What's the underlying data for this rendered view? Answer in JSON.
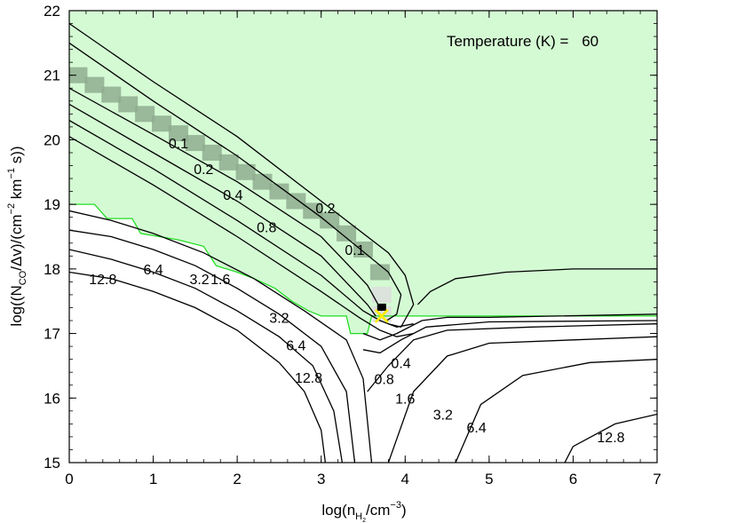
{
  "chart_data": {
    "type": "contour",
    "annotation": {
      "label": "Temperature (K) =",
      "value": "60"
    },
    "xlim": [
      0,
      7
    ],
    "ylim": [
      15,
      22
    ],
    "xticks": [
      "0",
      "1",
      "2",
      "3",
      "4",
      "5",
      "6",
      "7"
    ],
    "yticks": [
      "15",
      "16",
      "17",
      "18",
      "19",
      "20",
      "21",
      "22"
    ],
    "colors": {
      "region_fill": "#d4fad4",
      "region_edge": "#22dd22",
      "contour": "#000000",
      "best_fit_marker": "#ffee00",
      "probability_dark": "#8fab8f",
      "probability_light": "#dddddd"
    },
    "best_fit": {
      "x": 3.72,
      "y": 17.27
    },
    "probability_band": [
      [
        0.1,
        21.0
      ],
      [
        0.3,
        20.85
      ],
      [
        0.5,
        20.7
      ],
      [
        0.7,
        20.55
      ],
      [
        0.9,
        20.4
      ],
      [
        1.1,
        20.25
      ],
      [
        1.3,
        20.1
      ],
      [
        1.5,
        19.95
      ],
      [
        1.7,
        19.8
      ],
      [
        1.9,
        19.65
      ],
      [
        2.1,
        19.5
      ],
      [
        2.3,
        19.35
      ],
      [
        2.5,
        19.2
      ],
      [
        2.7,
        19.05
      ],
      [
        2.9,
        18.9
      ],
      [
        3.1,
        18.75
      ],
      [
        3.3,
        18.55
      ],
      [
        3.5,
        18.3
      ],
      [
        3.7,
        17.95
      ],
      [
        3.72,
        17.6
      ],
      [
        3.72,
        17.3
      ]
    ],
    "region_boundary": [
      [
        0.0,
        19.0
      ],
      [
        0.3,
        19.0
      ],
      [
        0.45,
        18.78
      ],
      [
        0.75,
        18.78
      ],
      [
        0.85,
        18.55
      ],
      [
        1.3,
        18.45
      ],
      [
        1.6,
        18.35
      ],
      [
        1.75,
        18.05
      ],
      [
        2.0,
        17.95
      ],
      [
        2.2,
        17.85
      ],
      [
        2.45,
        17.7
      ],
      [
        2.65,
        17.5
      ],
      [
        2.85,
        17.35
      ],
      [
        3.0,
        17.27
      ],
      [
        3.3,
        17.27
      ],
      [
        3.35,
        17.0
      ],
      [
        3.55,
        17.0
      ],
      [
        3.6,
        17.27
      ],
      [
        7.0,
        17.27
      ]
    ],
    "contours": [
      {
        "label": "0.1",
        "points": [
          [
            0.0,
            20.8
          ],
          [
            1.0,
            20.08
          ],
          [
            2.0,
            19.35
          ],
          [
            3.0,
            18.5
          ],
          [
            3.55,
            17.75
          ],
          [
            3.72,
            17.35
          ]
        ],
        "label_at": [
          1.3,
          19.95
        ]
      },
      {
        "label": "0.2",
        "points": [
          [
            0.0,
            20.55
          ],
          [
            1.0,
            19.8
          ],
          [
            2.0,
            19.05
          ],
          [
            3.0,
            18.2
          ],
          [
            3.55,
            17.45
          ],
          [
            3.65,
            17.27
          ]
        ],
        "label_at": [
          1.6,
          19.55
        ]
      },
      {
        "label": "0.4",
        "points": [
          [
            0.0,
            20.3
          ],
          [
            1.0,
            19.55
          ],
          [
            2.0,
            18.75
          ],
          [
            3.0,
            17.9
          ],
          [
            3.5,
            17.35
          ],
          [
            3.7,
            17.2
          ],
          [
            3.9,
            17.1
          ],
          [
            4.1,
            17.15
          ]
        ],
        "label_at": [
          1.95,
          19.15
        ]
      },
      {
        "label": "0.8",
        "points": [
          [
            0.0,
            20.05
          ],
          [
            1.0,
            19.3
          ],
          [
            2.0,
            18.5
          ],
          [
            3.0,
            17.65
          ],
          [
            3.45,
            17.25
          ],
          [
            3.7,
            17.05
          ],
          [
            3.9,
            16.95
          ],
          [
            4.1,
            17.0
          ]
        ],
        "label_at": [
          2.35,
          18.65
        ]
      },
      {
        "label": "0.2",
        "points": [
          [
            0.0,
            21.8
          ],
          [
            1.0,
            20.9
          ],
          [
            2.0,
            20.05
          ],
          [
            3.0,
            19.05
          ],
          [
            3.8,
            18.25
          ],
          [
            4.0,
            17.9
          ],
          [
            4.1,
            17.45
          ],
          [
            3.95,
            17.1
          ],
          [
            3.8,
            17.15
          ]
        ],
        "label_at": [
          3.05,
          18.95
        ]
      },
      {
        "label": "0.1",
        "points": [
          [
            0.0,
            21.5
          ],
          [
            1.0,
            20.6
          ],
          [
            2.0,
            19.75
          ],
          [
            3.0,
            18.8
          ],
          [
            3.8,
            17.95
          ],
          [
            3.95,
            17.6
          ],
          [
            3.9,
            17.3
          ],
          [
            3.78,
            17.2
          ]
        ],
        "label_at": [
          3.4,
          18.3
        ]
      },
      {
        "label": "0.4",
        "points": [
          [
            3.5,
            17.0
          ],
          [
            3.7,
            16.9
          ],
          [
            3.9,
            17.0
          ],
          [
            4.2,
            17.2
          ],
          [
            4.5,
            17.25
          ],
          [
            5.0,
            17.25
          ],
          [
            7.0,
            17.3
          ]
        ],
        "label_at": [
          3.95,
          16.55
        ]
      },
      {
        "label": "0.8",
        "points": [
          [
            3.5,
            16.75
          ],
          [
            3.7,
            16.7
          ],
          [
            3.95,
            16.9
          ],
          [
            4.25,
            17.1
          ],
          [
            5.0,
            17.18
          ],
          [
            7.0,
            17.2
          ]
        ],
        "label_at": [
          3.75,
          16.3
        ]
      },
      {
        "label": "1.6",
        "points": [
          [
            3.55,
            16.1
          ],
          [
            3.8,
            16.5
          ],
          [
            4.1,
            16.9
          ],
          [
            4.5,
            17.05
          ],
          [
            5.5,
            17.1
          ],
          [
            7.0,
            17.15
          ]
        ],
        "label_at": [
          4.0,
          16.0
        ]
      },
      {
        "label": "3.2",
        "points": [
          [
            3.8,
            15.0
          ],
          [
            4.1,
            16.1
          ],
          [
            4.5,
            16.65
          ],
          [
            5.0,
            16.85
          ],
          [
            6.0,
            16.9
          ],
          [
            7.0,
            16.95
          ]
        ],
        "label_at": [
          4.45,
          15.75
        ]
      },
      {
        "label": "6.4",
        "points": [
          [
            4.6,
            15.0
          ],
          [
            4.9,
            15.9
          ],
          [
            5.4,
            16.35
          ],
          [
            6.2,
            16.55
          ],
          [
            7.0,
            16.6
          ]
        ],
        "label_at": [
          4.85,
          15.55
        ]
      },
      {
        "label": "12.8",
        "points": [
          [
            5.9,
            15.0
          ],
          [
            6.0,
            15.25
          ],
          [
            6.5,
            15.6
          ],
          [
            7.0,
            15.75
          ]
        ],
        "label_at": [
          6.45,
          15.4
        ]
      },
      {
        "label": "",
        "points": [
          [
            4.15,
            17.45
          ],
          [
            4.3,
            17.65
          ],
          [
            4.6,
            17.85
          ],
          [
            5.2,
            17.95
          ],
          [
            6.0,
            18.0
          ],
          [
            7.0,
            18.0
          ]
        ],
        "label_at": null
      },
      {
        "label": "1.6",
        "points": [
          [
            0.0,
            18.9
          ],
          [
            0.5,
            18.75
          ],
          [
            1.0,
            18.55
          ],
          [
            1.6,
            18.25
          ],
          [
            2.2,
            17.85
          ],
          [
            2.8,
            17.35
          ],
          [
            3.3,
            16.9
          ],
          [
            3.5,
            16.3
          ],
          [
            3.6,
            15.0
          ]
        ],
        "label_at": [
          1.8,
          17.85
        ]
      },
      {
        "label": "3.2",
        "points": [
          [
            0.0,
            18.6
          ],
          [
            0.5,
            18.5
          ],
          [
            1.0,
            18.3
          ],
          [
            1.5,
            18.05
          ],
          [
            2.0,
            17.7
          ],
          [
            2.5,
            17.3
          ],
          [
            3.0,
            16.8
          ],
          [
            3.3,
            16.1
          ],
          [
            3.4,
            15.0
          ]
        ],
        "label_at": [
          1.55,
          17.85
        ]
      },
      {
        "label": "6.4",
        "points": [
          [
            0.0,
            18.3
          ],
          [
            0.5,
            18.15
          ],
          [
            1.0,
            17.95
          ],
          [
            1.5,
            17.7
          ],
          [
            2.0,
            17.35
          ],
          [
            2.5,
            16.95
          ],
          [
            2.9,
            16.5
          ],
          [
            3.15,
            15.8
          ],
          [
            3.25,
            15.0
          ]
        ],
        "label_at": [
          1.0,
          18.0
        ]
      },
      {
        "label": "12.8",
        "points": [
          [
            0.0,
            17.95
          ],
          [
            0.5,
            17.85
          ],
          [
            1.0,
            17.65
          ],
          [
            1.5,
            17.4
          ],
          [
            2.0,
            17.05
          ],
          [
            2.5,
            16.55
          ],
          [
            2.8,
            16.1
          ],
          [
            3.0,
            15.5
          ],
          [
            3.05,
            15.0
          ]
        ],
        "label_at": [
          0.4,
          17.85
        ]
      },
      {
        "label": "3.2",
        "points": [],
        "label_at": [
          2.5,
          17.25
        ]
      },
      {
        "label": "6.4",
        "points": [],
        "label_at": [
          2.7,
          16.82
        ]
      },
      {
        "label": "12.8",
        "points": [],
        "label_at": [
          2.85,
          16.32
        ]
      }
    ]
  }
}
